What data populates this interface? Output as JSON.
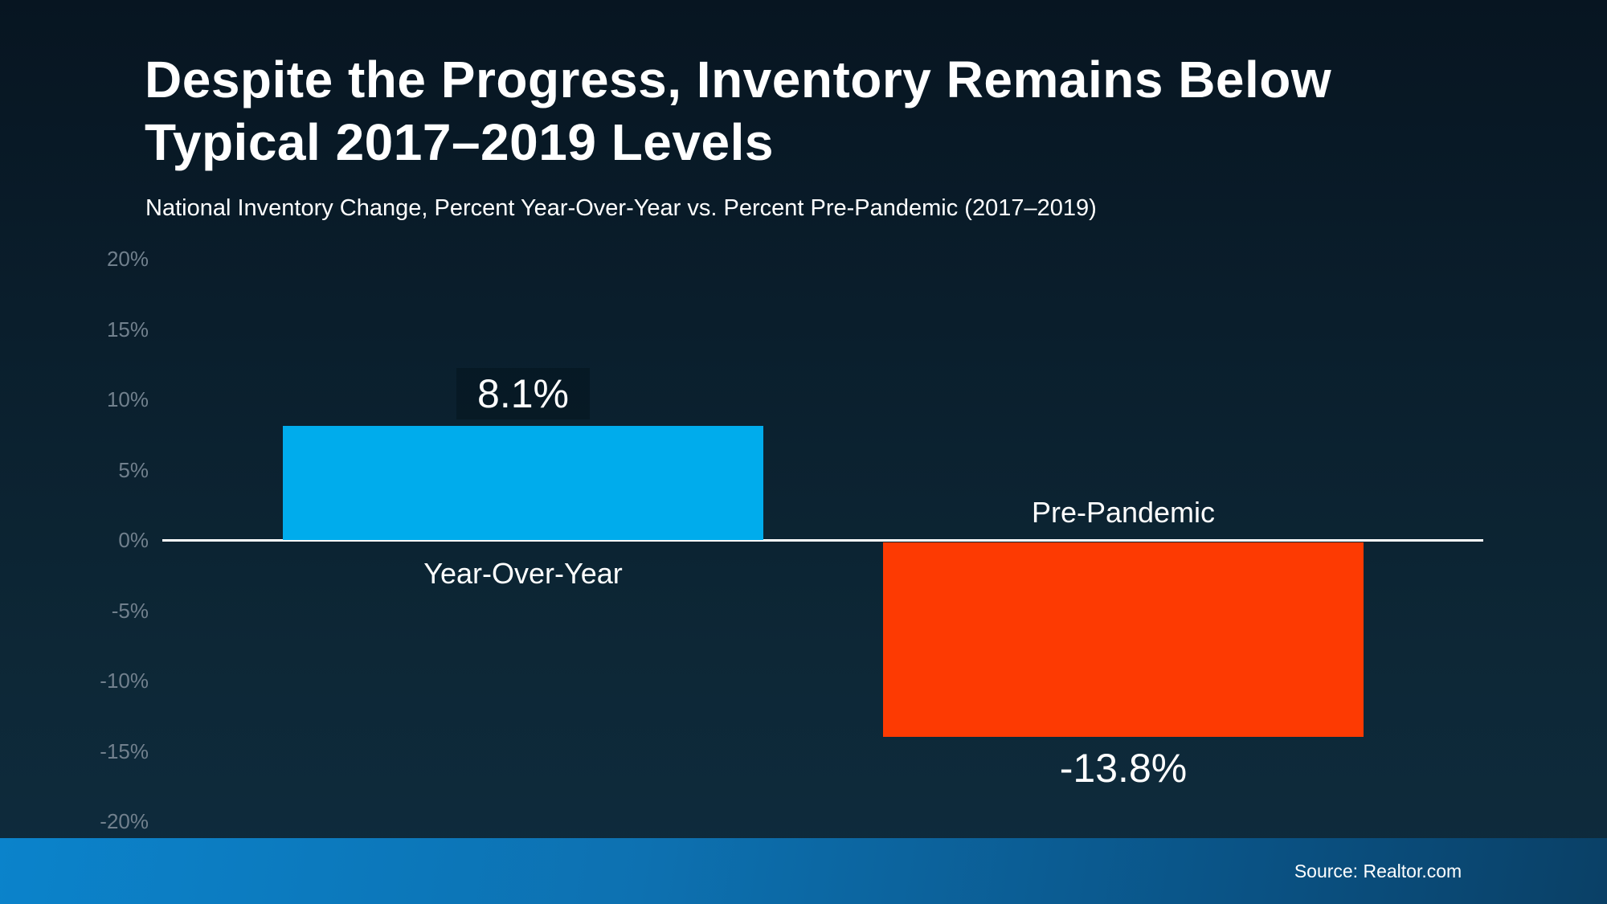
{
  "page": {
    "title_line1": "Despite the Progress, Inventory Remains Below",
    "title_line2": "Typical 2017–2019 Levels",
    "subtitle": "National Inventory Change, Percent Year-Over-Year vs. Percent Pre-Pandemic (2017–2019)",
    "source": "Source: Realtor.com"
  },
  "colors": {
    "background_top": "#071521",
    "background_bottom": "#0e2c3e",
    "positive_bar": "#00ACEC",
    "negative_bar": "#FD3A02",
    "axis_line": "#ffffff",
    "tick_label": "#71808d",
    "footer_gradient_left": "#0b83cb",
    "footer_gradient_right": "#0a4066",
    "text": "#ffffff"
  },
  "chart_data": {
    "type": "bar",
    "title": "Despite the Progress, Inventory Remains Below Typical 2017–2019 Levels",
    "subtitle": "National Inventory Change, Percent Year-Over-Year vs. Percent Pre-Pandemic (2017–2019)",
    "categories": [
      "Year-Over-Year",
      "Pre-Pandemic"
    ],
    "values": [
      8.1,
      -13.8
    ],
    "value_labels": [
      "8.1%",
      "-13.8%"
    ],
    "bar_colors": [
      "#00ACEC",
      "#FD3A02"
    ],
    "value_label_boxed": [
      true,
      false
    ],
    "xlabel": "",
    "ylabel": "",
    "ylim": [
      -20,
      20
    ],
    "y_tick_values": [
      20,
      15,
      10,
      5,
      0,
      -5,
      -10,
      -15,
      -20
    ],
    "y_tick_labels": [
      "20%",
      "15%",
      "10%",
      "5%",
      "0%",
      "-5%",
      "-10%",
      "-15%",
      "-20%"
    ],
    "grid": false,
    "legend": false,
    "annotations": [
      "Source: Realtor.com"
    ]
  }
}
